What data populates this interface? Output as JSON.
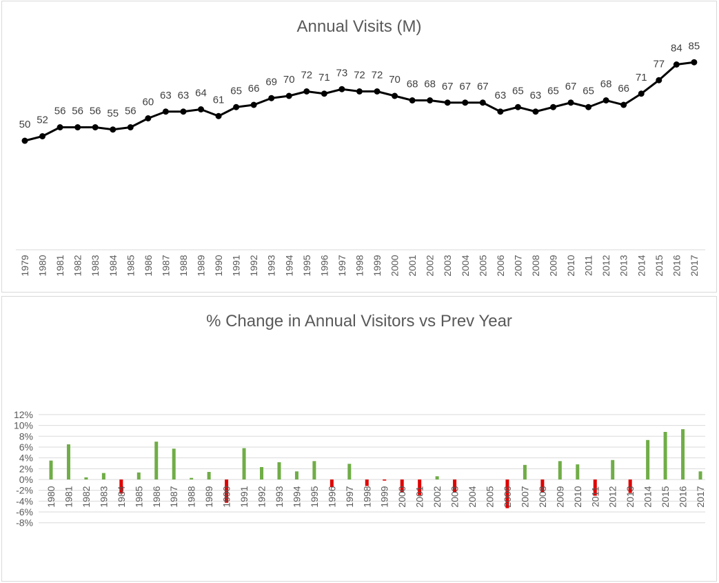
{
  "chart_data": [
    {
      "type": "line",
      "title": "Annual Visits (M)",
      "xlabel": "",
      "ylabel": "",
      "categories": [
        "1979",
        "1980",
        "1981",
        "1982",
        "1983",
        "1984",
        "1985",
        "1986",
        "1987",
        "1988",
        "1989",
        "1990",
        "1991",
        "1992",
        "1993",
        "1994",
        "1995",
        "1996",
        "1997",
        "1998",
        "1999",
        "2000",
        "2001",
        "2002",
        "2003",
        "2004",
        "2005",
        "2006",
        "2007",
        "2008",
        "2009",
        "2010",
        "2011",
        "2012",
        "2013",
        "2014",
        "2015",
        "2016",
        "2017"
      ],
      "values": [
        50,
        52,
        56,
        56,
        56,
        55,
        56,
        60,
        63,
        63,
        64,
        61,
        65,
        66,
        69,
        70,
        72,
        71,
        73,
        72,
        72,
        70,
        68,
        68,
        67,
        67,
        67,
        63,
        65,
        63,
        65,
        67,
        65,
        68,
        66,
        71,
        77,
        84,
        85
      ],
      "series_color": "#000000",
      "grid": false,
      "legend": "none"
    },
    {
      "type": "bar",
      "title": "% Change in Annual Visitors vs Prev Year",
      "xlabel": "",
      "ylabel": "",
      "categories": [
        "1980",
        "1981",
        "1982",
        "1983",
        "1984",
        "1985",
        "1986",
        "1987",
        "1988",
        "1989",
        "1990",
        "1991",
        "1992",
        "1993",
        "1994",
        "1995",
        "1996",
        "1997",
        "1998",
        "1999",
        "2000",
        "2001",
        "2002",
        "2003",
        "2004",
        "2005",
        "2006",
        "2007",
        "2008",
        "2009",
        "2010",
        "2011",
        "2012",
        "2013",
        "2014",
        "2015",
        "2016",
        "2017"
      ],
      "values": [
        3.5,
        6.5,
        0.4,
        1.2,
        -2.6,
        1.3,
        7.0,
        5.7,
        0.3,
        1.4,
        -4.3,
        5.8,
        2.3,
        3.2,
        1.5,
        3.4,
        -1.4,
        2.9,
        -1.2,
        -0.2,
        -2.4,
        -2.9,
        0.6,
        -2.4,
        0,
        0,
        -5.3,
        2.7,
        -2.4,
        3.4,
        2.8,
        -3.0,
        3.6,
        -2.5,
        7.3,
        8.8,
        9.3,
        1.5
      ],
      "ylim": [
        -8,
        12
      ],
      "yticks": [
        -8,
        -6,
        -4,
        -2,
        0,
        2,
        4,
        6,
        8,
        10,
        12
      ],
      "ytick_format": "%",
      "positive_color": "#70AD47",
      "negative_color": "#E00000",
      "grid": true,
      "legend": "none"
    }
  ]
}
